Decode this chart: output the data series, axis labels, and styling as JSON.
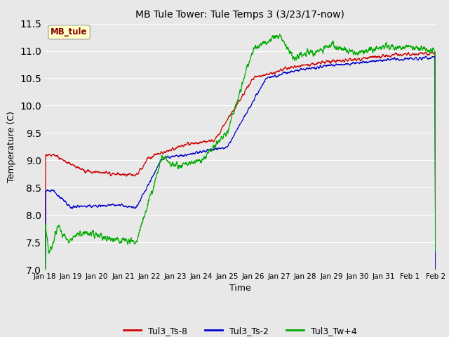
{
  "title": "MB Tule Tower: Tule Temps 3 (3/23/17-now)",
  "xlabel": "Time",
  "ylabel": "Temperature (C)",
  "ylim": [
    7.0,
    11.5
  ],
  "yticks": [
    7.0,
    7.5,
    8.0,
    8.5,
    9.0,
    9.5,
    10.0,
    10.5,
    11.0,
    11.5
  ],
  "fig_bg_color": "#e8e8e8",
  "plot_bg_color": "#e8e8e8",
  "legend_label": "MB_tule",
  "legend_box_color": "#ffffcc",
  "legend_box_edge": "#aaaaaa",
  "series": {
    "Tul3_Ts-8": {
      "color": "#cc0000"
    },
    "Tul3_Ts-2": {
      "color": "#0000cc"
    },
    "Tul3_Tw+4": {
      "color": "#00aa00"
    }
  },
  "xtick_labels": [
    "Jan 18",
    "Jan 19",
    "Jan 20",
    "Jan 21",
    "Jan 22",
    "Jan 23",
    "Jan 24",
    "Jan 25",
    "Jan 26",
    "Jan 27",
    "Jan 28",
    "Jan 29",
    "Jan 30",
    "Jan 31",
    "Feb 1",
    "Feb 2"
  ],
  "n_points": 2000
}
